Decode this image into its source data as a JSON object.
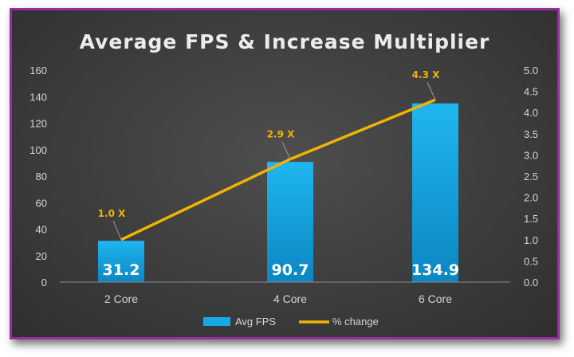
{
  "chart_data": {
    "type": "bar",
    "title": "Average FPS & Increase Multiplier",
    "categories": [
      "2 Core",
      "4 Core",
      "6 Core"
    ],
    "series": [
      {
        "name": "Avg FPS",
        "type": "bar",
        "axis": "left",
        "values": [
          31.2,
          90.7,
          134.9
        ],
        "data_labels": [
          "31.2",
          "90.7",
          "134.9"
        ],
        "color": "#17a9e6"
      },
      {
        "name": "% change",
        "type": "line",
        "axis": "right",
        "values": [
          1.0,
          2.9,
          4.3
        ],
        "data_labels": [
          "1.0 X",
          "2.9 X",
          "4.3 X"
        ],
        "color": "#f0b400"
      }
    ],
    "y_left": {
      "min": 0,
      "max": 160,
      "step": 20,
      "ticks": [
        "0",
        "20",
        "40",
        "60",
        "80",
        "100",
        "120",
        "140",
        "160"
      ]
    },
    "y_right": {
      "min": 0,
      "max": 5,
      "step": 0.5,
      "ticks": [
        "0.0",
        "0.5",
        "1.0",
        "1.5",
        "2.0",
        "2.5",
        "3.0",
        "3.5",
        "4.0",
        "4.5",
        "5.0"
      ]
    },
    "grid": false,
    "legend": "bottom"
  }
}
